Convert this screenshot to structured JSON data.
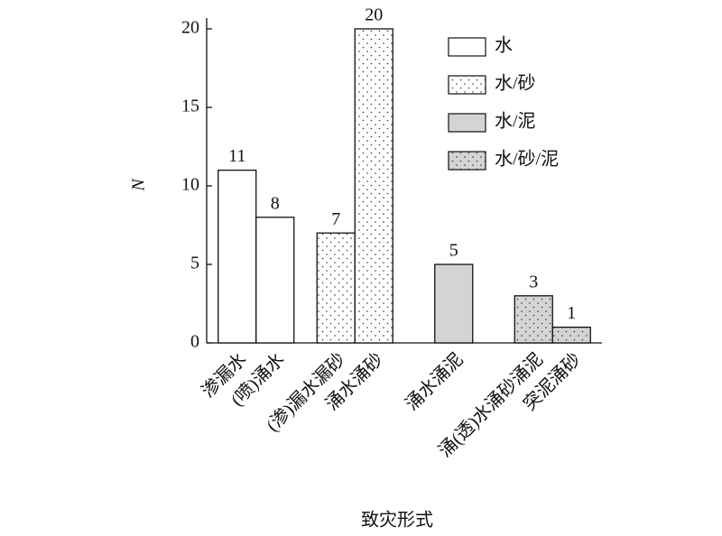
{
  "chart_data": {
    "type": "bar",
    "categories": [
      "渗漏水",
      "(喷)涌水",
      "(渗)漏水漏砂",
      "涌水涌砂",
      "涌水涌泥",
      "涌(透)水涌砂涌泥",
      "突泥涌砂"
    ],
    "series": [
      {
        "name": "水",
        "color": "#ffffff",
        "pattern": "none",
        "values": [
          11,
          8,
          null,
          null,
          null,
          null,
          null
        ]
      },
      {
        "name": "水/砂",
        "color": "#ffffff",
        "pattern": "dots",
        "values": [
          null,
          null,
          7,
          20,
          null,
          null,
          null
        ]
      },
      {
        "name": "水/泥",
        "color": "#d4d4d4",
        "pattern": "none",
        "values": [
          null,
          null,
          null,
          null,
          5,
          null,
          null
        ]
      },
      {
        "name": "水/砂/泥",
        "color": "#d4d4d4",
        "pattern": "dots",
        "values": [
          null,
          null,
          null,
          null,
          null,
          3,
          1
        ]
      }
    ],
    "ylabel": "N",
    "xlabel": "致灾形式",
    "ylim": [
      0,
      20
    ],
    "yticks": [
      0,
      5,
      10,
      15,
      20
    ],
    "legend": "upper right"
  }
}
